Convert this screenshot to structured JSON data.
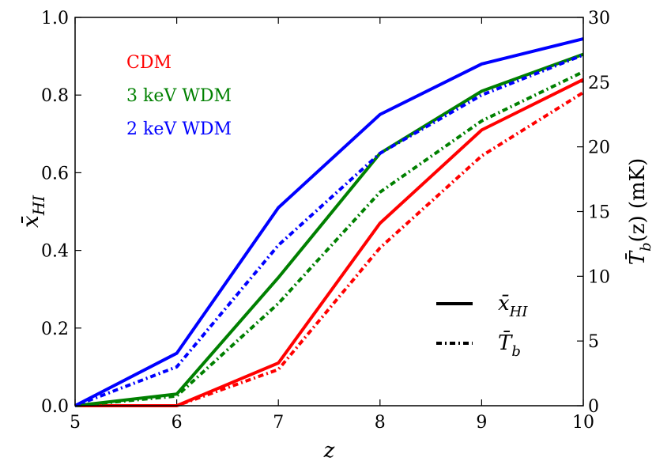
{
  "chart_data": {
    "type": "line",
    "x": [
      5,
      6,
      7,
      8,
      9,
      10
    ],
    "xlabel": "z",
    "xlim": [
      5,
      10
    ],
    "xticks": [
      "5",
      "6",
      "7",
      "8",
      "9",
      "10"
    ],
    "ylabel_left": "x̄_HI",
    "ylim_left": [
      0.0,
      1.0
    ],
    "yticks_left": [
      "0.0",
      "0.2",
      "0.4",
      "0.6",
      "0.8",
      "1.0"
    ],
    "ylabel_right": "T̄_b(z) (mK)",
    "ylim_right": [
      0,
      30
    ],
    "yticks_right": [
      "0",
      "5",
      "10",
      "15",
      "20",
      "25",
      "30"
    ],
    "series": [
      {
        "name": "CDM",
        "quantity": "x_HI",
        "axis": "left",
        "style": "solid",
        "color": "#ff0000",
        "values": [
          0.0,
          0.0,
          0.11,
          0.47,
          0.71,
          0.84
        ]
      },
      {
        "name": "3 keV WDM",
        "quantity": "x_HI",
        "axis": "left",
        "style": "solid",
        "color": "#008000",
        "values": [
          0.0,
          0.03,
          0.33,
          0.65,
          0.81,
          0.905
        ]
      },
      {
        "name": "2 keV WDM",
        "quantity": "x_HI",
        "axis": "left",
        "style": "solid",
        "color": "#0000ff",
        "values": [
          0.0,
          0.135,
          0.51,
          0.75,
          0.88,
          0.945
        ]
      },
      {
        "name": "CDM",
        "quantity": "T_b",
        "axis": "right",
        "style": "dashdot",
        "color": "#ff0000",
        "values": [
          0.0,
          0.0,
          2.8,
          12.2,
          19.3,
          24.2
        ]
      },
      {
        "name": "3 keV WDM",
        "quantity": "T_b",
        "axis": "right",
        "style": "dashdot",
        "color": "#008000",
        "values": [
          0.0,
          0.75,
          7.9,
          16.5,
          22.0,
          25.8
        ]
      },
      {
        "name": "2 keV WDM",
        "quantity": "T_b",
        "axis": "right",
        "style": "dashdot",
        "color": "#0000ff",
        "values": [
          0.0,
          3.0,
          12.4,
          19.5,
          24.0,
          27.1
        ]
      }
    ],
    "legend_models": [
      {
        "label": "CDM",
        "color": "#ff0000"
      },
      {
        "label": "3 keV WDM",
        "color": "#008000"
      },
      {
        "label": "2 keV WDM",
        "color": "#0000ff"
      }
    ],
    "legend_models_placement": "top-left",
    "legend_styles": [
      {
        "label": "x̄_HI",
        "style": "solid"
      },
      {
        "label": "T̄_b",
        "style": "dashdot"
      }
    ],
    "legend_styles_placement": "bottom-right",
    "grid": false
  }
}
